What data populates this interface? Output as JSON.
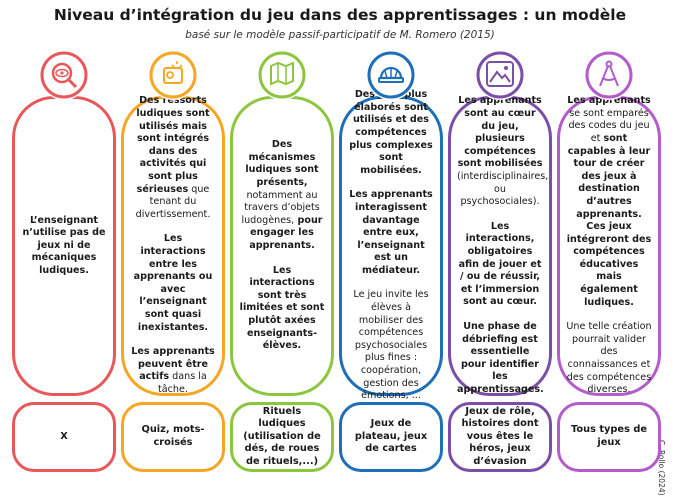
{
  "title": "Niveau d’intégration du jeu dans des apprentissages : un modèle",
  "subtitle": "basé sur le modèle passif-participatif de M. Romero (2015)",
  "credit": "C. Rollo (2024)",
  "columns": [
    {
      "color": "#e8585a",
      "paragraphs": [
        [
          {
            "text": "L’enseignant n’utilise pas de jeux ni de mécaniques ludiques.",
            "bold": true
          }
        ]
      ],
      "examples": "X"
    },
    {
      "color": "#f5a623",
      "paragraphs": [
        [
          {
            "text": "Des ressorts ludiques sont utilisés mais sont intégrés dans des activités qui sont plus sérieuses",
            "bold": true
          },
          {
            "text": " que tenant du divertissement.",
            "bold": false
          }
        ],
        [
          {
            "text": "Les interactions entre les apprenants ou avec l’enseignant sont quasi inexistantes.",
            "bold": true
          }
        ],
        [
          {
            "text": "Les apprenants peuvent être actifs",
            "bold": true
          },
          {
            "text": " dans la tâche.",
            "bold": false
          }
        ]
      ],
      "examples": "Quiz, mots-croisés"
    },
    {
      "color": "#8cc63f",
      "paragraphs": [
        [
          {
            "text": "Des mécanismes ludiques sont présents,",
            "bold": true
          },
          {
            "text": " notamment au travers d’objets ludogènes,",
            "bold": false
          },
          {
            "text": " pour engager les apprenants.",
            "bold": true
          }
        ],
        [
          {
            "text": "Les interactions sont très limitées et sont plutôt axées enseignants-élèves.",
            "bold": true
          }
        ]
      ],
      "examples": "Rituels ludiques (utilisation de dés, de roues de rituels,...)"
    },
    {
      "color": "#1e6fba",
      "paragraphs": [
        [
          {
            "text": "Des jeux plus élaborés sont utilisés et des compétences plus complexes sont mobilisées.",
            "bold": true
          }
        ],
        [
          {
            "text": "Les apprenants interagissent davantage entre eux, l’enseignant est un médiateur.",
            "bold": true
          }
        ],
        [
          {
            "text": "Le jeu invite les élèves à mobiliser des compétences psychosociales plus fines : coopération, gestion des émotions, ...",
            "bold": false
          }
        ]
      ],
      "examples": "Jeux de plateau, jeux de cartes"
    },
    {
      "color": "#7b4fa8",
      "paragraphs": [
        [
          {
            "text": "Les apprenants sont au cœur du jeu, plusieurs compétences sont mobilisées",
            "bold": true
          },
          {
            "text": " (interdisciplinaires, ou psychosociales).",
            "bold": false
          }
        ],
        [
          {
            "text": "Les interactions, obligatoires afin de jouer et / ou de réussir, et l’immersion sont au cœur.",
            "bold": true
          }
        ],
        [
          {
            "text": "Une phase de débriefing est essentielle pour identifier les apprentissages.",
            "bold": true
          }
        ]
      ],
      "examples": "Jeux de rôle, histoires dont vous êtes le héros, jeux d’évasion"
    },
    {
      "color": "#b45cc9",
      "paragraphs": [
        [
          {
            "text": "Les apprenants",
            "bold": true
          },
          {
            "text": " se sont emparés des codes du jeu et ",
            "bold": false
          },
          {
            "text": "sont capables à leur tour de créer des jeux à destination d’autres apprenants. Ces jeux intégreront des compétences éducatives mais également ludiques.",
            "bold": true
          }
        ],
        [
          {
            "text": "Une telle création pourrait valider des connaissances et des compétences diverses.",
            "bold": false
          }
        ]
      ],
      "examples": "Tous types de jeux"
    }
  ]
}
